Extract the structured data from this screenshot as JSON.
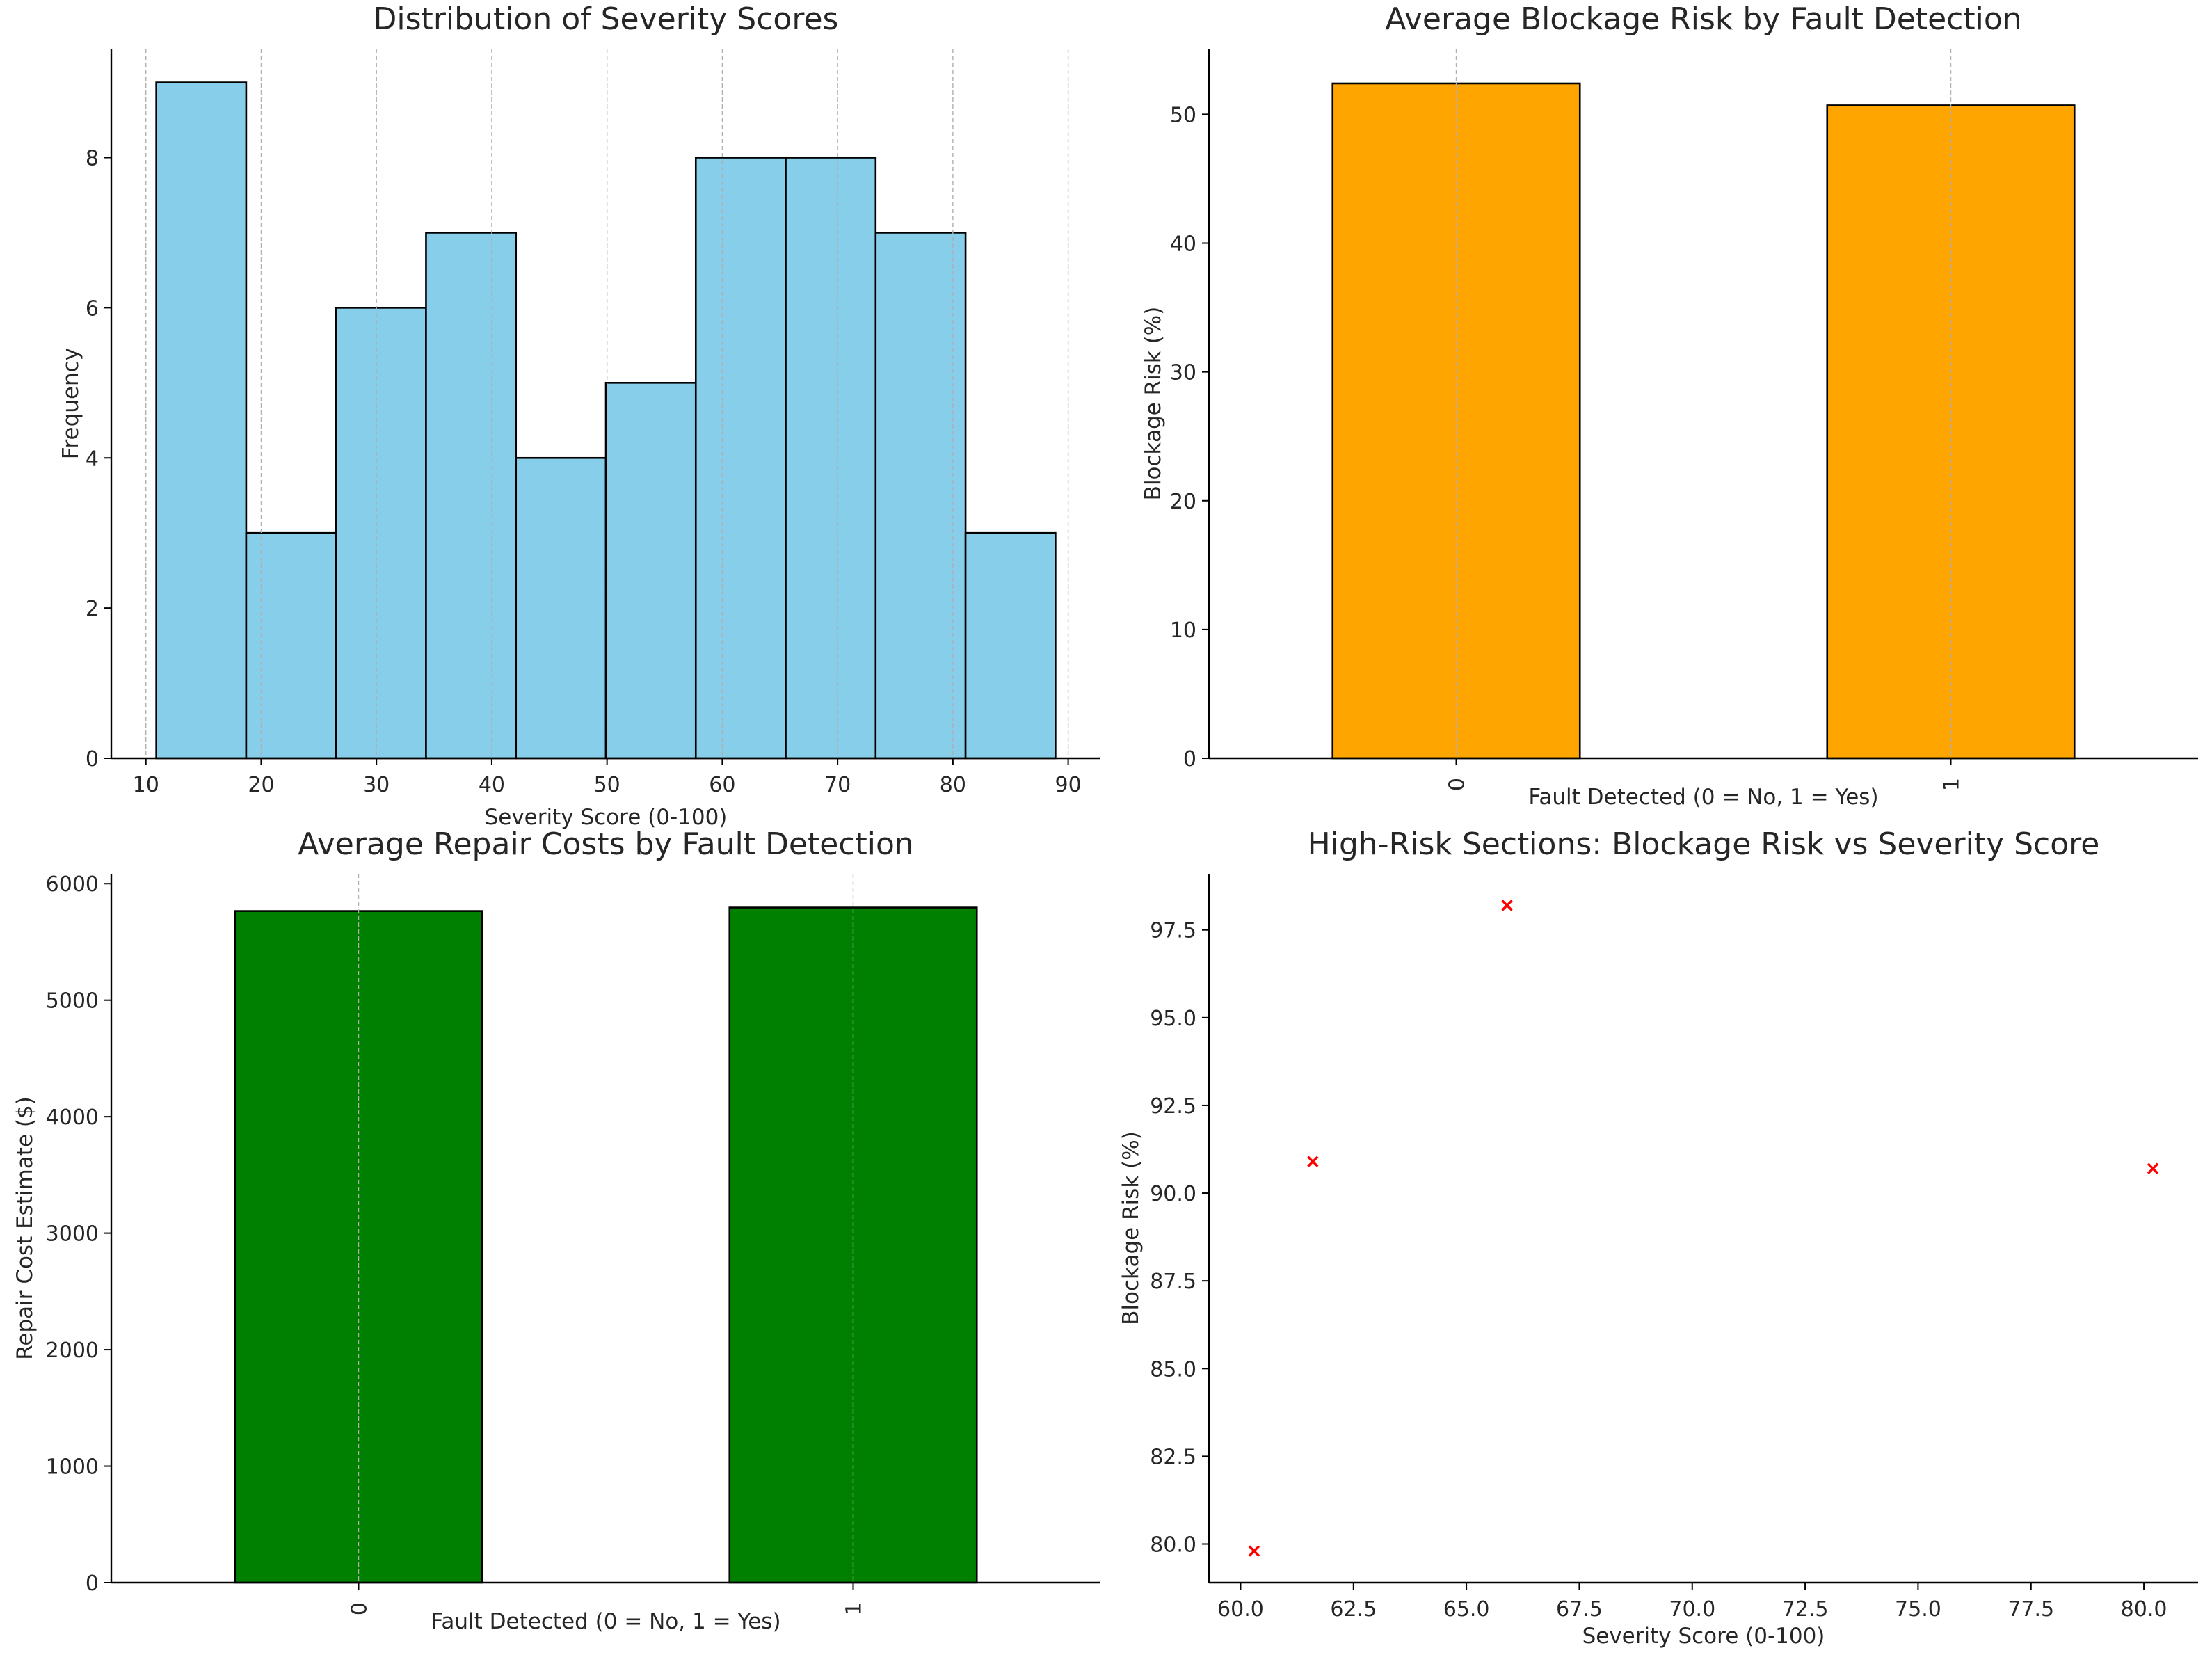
{
  "chart_data": [
    {
      "type": "bar",
      "subtype": "histogram",
      "title": "Distribution of Severity Scores",
      "xlabel": "Severity Score (0-100)",
      "ylabel": "Frequency",
      "bin_edges": [
        10.9,
        18.7,
        26.5,
        34.3,
        42.1,
        49.9,
        57.7,
        65.5,
        73.3,
        81.1,
        88.9
      ],
      "values": [
        9,
        3,
        6,
        7,
        4,
        5,
        8,
        8,
        7,
        3
      ],
      "xlim": [
        7.0,
        92.8
      ],
      "ylim": [
        0,
        9.45
      ],
      "xticks": [
        10,
        20,
        30,
        40,
        50,
        60,
        70,
        80,
        90
      ],
      "xtick_labels": [
        "10",
        "20",
        "30",
        "40",
        "50",
        "60",
        "70",
        "80",
        "90"
      ],
      "yticks": [
        0,
        2,
        4,
        6,
        8
      ],
      "ytick_labels": [
        "0",
        "2",
        "4",
        "6",
        "8"
      ],
      "grid": "x",
      "bar_color": "#87CEEB",
      "edge_color": "#000000"
    },
    {
      "type": "bar",
      "title": "Average Blockage Risk by Fault Detection",
      "xlabel": "Fault Detected (0 = No, 1 = Yes)",
      "ylabel": "Blockage Risk (%)",
      "categories": [
        "0",
        "1"
      ],
      "values": [
        52.4,
        50.7
      ],
      "ylim": [
        0,
        55.1
      ],
      "yticks": [
        0,
        10,
        20,
        30,
        40,
        50
      ],
      "ytick_labels": [
        "0",
        "10",
        "20",
        "30",
        "40",
        "50"
      ],
      "grid": "x",
      "bar_color": "#FFA500",
      "edge_color": "#000000"
    },
    {
      "type": "bar",
      "title": "Average Repair Costs by Fault Detection",
      "xlabel": "Fault Detected (0 = No, 1 = Yes)",
      "ylabel": "Repair Cost Estimate ($)",
      "categories": [
        "0",
        "1"
      ],
      "values": [
        5765,
        5795
      ],
      "ylim": [
        0,
        6085
      ],
      "yticks": [
        0,
        1000,
        2000,
        3000,
        4000,
        5000,
        6000
      ],
      "ytick_labels": [
        "0",
        "1000",
        "2000",
        "3000",
        "4000",
        "5000",
        "6000"
      ],
      "grid": "x",
      "bar_color": "#008000",
      "edge_color": "#000000"
    },
    {
      "type": "scatter",
      "title": "High-Risk Sections: Blockage Risk vs Severity Score",
      "xlabel": "Severity Score (0-100)",
      "ylabel": "Blockage Risk (%)",
      "x": [
        60.3,
        61.6,
        65.9,
        80.2
      ],
      "y": [
        79.8,
        90.9,
        98.2,
        90.7
      ],
      "xlim": [
        59.3,
        81.2
      ],
      "ylim": [
        78.9,
        99.1
      ],
      "xticks": [
        60.0,
        62.5,
        65.0,
        67.5,
        70.0,
        72.5,
        75.0,
        77.5,
        80.0
      ],
      "xtick_labels": [
        "60.0",
        "62.5",
        "65.0",
        "67.5",
        "70.0",
        "72.5",
        "75.0",
        "77.5",
        "80.0"
      ],
      "yticks": [
        80.0,
        82.5,
        85.0,
        87.5,
        90.0,
        92.5,
        95.0,
        97.5
      ],
      "ytick_labels": [
        "80.0",
        "82.5",
        "85.0",
        "87.5",
        "90.0",
        "92.5",
        "95.0",
        "97.5"
      ],
      "marker": "x",
      "marker_color": "#FF0000"
    }
  ]
}
